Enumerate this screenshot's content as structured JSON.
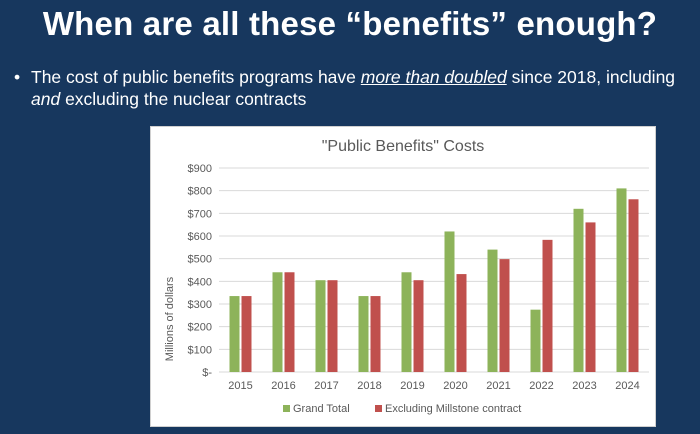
{
  "slide": {
    "title": "When are all these “benefits” enough?",
    "bullet": {
      "dot": "•",
      "part1": "The cost of public benefits programs have ",
      "emph1": "more than doubled",
      "part2": " since 2018, including ",
      "emph2": "and",
      "part3": " excluding the nuclear contracts"
    }
  },
  "colors": {
    "background": "#17375e",
    "grand_total": "#8db35a",
    "excluding_millstone": "#c0504d",
    "grid": "#d9d9d9",
    "text": "#595959"
  },
  "chart_data": {
    "type": "bar",
    "title": "\"Public Benefits\" Costs",
    "ylabel": "Millions of dollars",
    "xlabel": "",
    "categories": [
      "2015",
      "2016",
      "2017",
      "2018",
      "2019",
      "2020",
      "2021",
      "2022",
      "2023",
      "2024"
    ],
    "series": [
      {
        "name": "Grand Total",
        "values": [
          335,
          440,
          405,
          335,
          440,
          620,
          540,
          275,
          720,
          810
        ]
      },
      {
        "name": "Excluding Millstone contract",
        "values": [
          335,
          440,
          405,
          335,
          405,
          432,
          498,
          583,
          660,
          762
        ]
      }
    ],
    "ylim": [
      0,
      900
    ],
    "yticks": [
      "$-",
      "$100",
      "$200",
      "$300",
      "$400",
      "$500",
      "$600",
      "$700",
      "$800",
      "$900"
    ],
    "grid": true,
    "legend": "bottom"
  }
}
